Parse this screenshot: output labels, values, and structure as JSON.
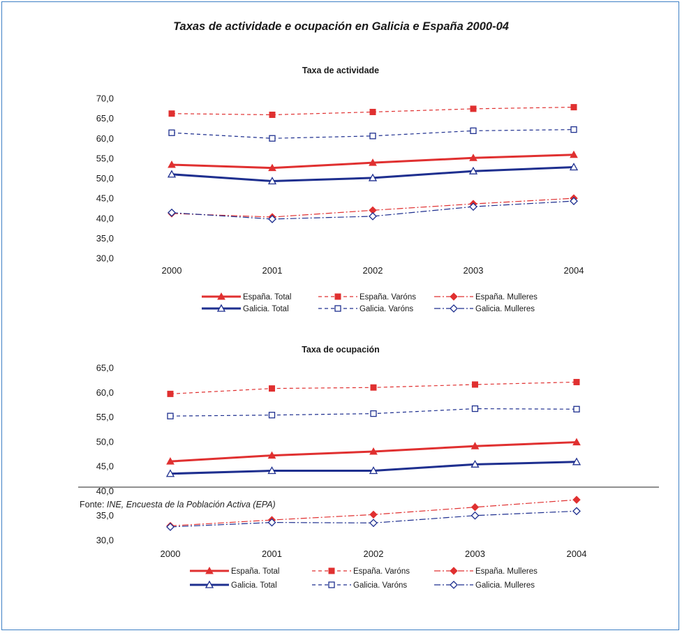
{
  "title": "Taxas de actividade e ocupación en Galicia e España 2000-04",
  "source": {
    "prefix": "Fonte:",
    "org": "INE",
    "rest": ", Encuesta de la Población Activa (EPA)"
  },
  "colors": {
    "spain": "#e03030",
    "galicia": "#1e2f8f"
  },
  "chart_data": [
    {
      "type": "line",
      "title": "Taxa de actividade",
      "xlabel": "",
      "ylabel": "",
      "categories": [
        "2000",
        "2001",
        "2002",
        "2003",
        "2004"
      ],
      "ylim": [
        30,
        70
      ],
      "yticks": [
        "30,0",
        "35,0",
        "40,0",
        "45,0",
        "50,0",
        "55,0",
        "60,0",
        "65,0",
        "70,0"
      ],
      "grid": false,
      "legend_position": "bottom",
      "series": [
        {
          "name": "España. Total",
          "values": [
            53.4,
            52.6,
            53.9,
            55.1,
            55.9
          ],
          "color": "#e03030",
          "style": "solid",
          "marker": "triangle-filled"
        },
        {
          "name": "España. Varóns",
          "values": [
            66.2,
            65.9,
            66.6,
            67.4,
            67.8
          ],
          "color": "#e03030",
          "style": "dashed",
          "marker": "square-filled"
        },
        {
          "name": "España. Mulleres",
          "values": [
            41.2,
            40.3,
            42.0,
            43.6,
            45.0
          ],
          "color": "#e03030",
          "style": "dashdot",
          "marker": "diamond-filled"
        },
        {
          "name": "Galicia. Total",
          "values": [
            51.0,
            49.3,
            50.1,
            51.8,
            52.8
          ],
          "color": "#1e2f8f",
          "style": "solid",
          "marker": "triangle-open"
        },
        {
          "name": "Galicia. Varóns",
          "values": [
            61.4,
            60.0,
            60.6,
            61.9,
            62.2
          ],
          "color": "#1e2f8f",
          "style": "dashed",
          "marker": "square-open"
        },
        {
          "name": "Galicia. Mulleres",
          "values": [
            41.4,
            39.8,
            40.5,
            42.9,
            44.3
          ],
          "color": "#1e2f8f",
          "style": "dashdot",
          "marker": "diamond-open"
        }
      ]
    },
    {
      "type": "line",
      "title": "Taxa de ocupación",
      "xlabel": "",
      "ylabel": "",
      "categories": [
        "2000",
        "2001",
        "2002",
        "2003",
        "2004"
      ],
      "ylim": [
        30,
        65
      ],
      "yticks": [
        "30,0",
        "35,0",
        "40,0",
        "45,0",
        "50,0",
        "55,0",
        "60,0",
        "65,0"
      ],
      "grid": false,
      "legend_position": "bottom",
      "series": [
        {
          "name": "España. Total",
          "values": [
            46.0,
            47.2,
            48.0,
            49.1,
            49.9
          ],
          "color": "#e03030",
          "style": "solid",
          "marker": "triangle-filled"
        },
        {
          "name": "España. Varóns",
          "values": [
            59.7,
            60.8,
            61.0,
            61.6,
            62.1
          ],
          "color": "#e03030",
          "style": "dashed",
          "marker": "square-filled"
        },
        {
          "name": "España. Mulleres",
          "values": [
            32.9,
            34.1,
            35.2,
            36.7,
            38.2
          ],
          "color": "#e03030",
          "style": "dashdot",
          "marker": "diamond-filled"
        },
        {
          "name": "Galicia. Total",
          "values": [
            43.5,
            44.1,
            44.1,
            45.4,
            45.9
          ],
          "color": "#1e2f8f",
          "style": "solid",
          "marker": "triangle-open"
        },
        {
          "name": "Galicia. Varóns",
          "values": [
            55.2,
            55.4,
            55.7,
            56.7,
            56.6
          ],
          "color": "#1e2f8f",
          "style": "dashed",
          "marker": "square-open"
        },
        {
          "name": "Galicia. Mulleres",
          "values": [
            32.7,
            33.6,
            33.5,
            35.0,
            35.9
          ],
          "color": "#1e2f8f",
          "style": "dashdot",
          "marker": "diamond-open"
        }
      ]
    }
  ]
}
